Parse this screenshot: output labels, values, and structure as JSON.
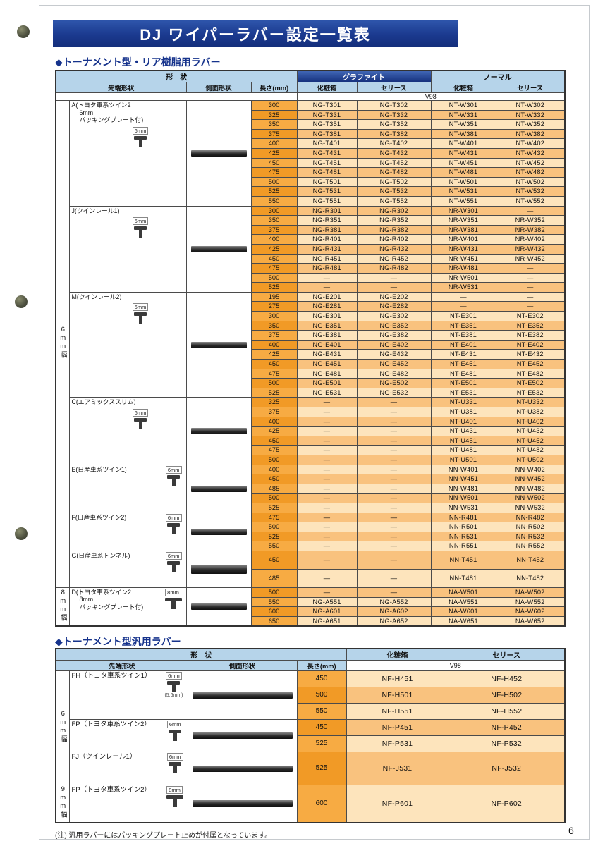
{
  "page": {
    "title": "DJ ワイパーラバー設定一覧表",
    "page_number": "6",
    "footnote": "(注) 汎用ラバーにはパッキングプレート止めが付属となっています。"
  },
  "colors": {
    "banner_blue": "#1b3a8f",
    "header_blue": "#b6d4ea",
    "length_orange": "#f19a26",
    "row_light": "#fde4bc",
    "row_dark": "#f9c27e"
  },
  "section1": {
    "heading": "◆トーナメント型・リア樹脂用ラバー",
    "header": {
      "shape": "形　状",
      "tip_shape": "先端形状",
      "side_shape": "側面形状",
      "length": "長さ(mm)",
      "graphite": "グラファイト",
      "normal": "ノーマル",
      "box": "化粧箱",
      "series": "セリース",
      "v98": "V98"
    },
    "bands": [
      {
        "label": "6mm幅",
        "group_count": 7
      },
      {
        "label": "8mm幅",
        "group_count": 1
      }
    ],
    "groups": [
      {
        "label_lines": [
          "A(トヨタ車系ツイン2",
          "6mm",
          "パッキングプレート付)"
        ],
        "tip_dim": "6mm",
        "rows": [
          {
            "len": "300",
            "c": [
              "NG-T301",
              "NG-T302",
              "NT-W301",
              "NT-W302"
            ]
          },
          {
            "len": "325",
            "c": [
              "NG-T331",
              "NG-T332",
              "NT-W331",
              "NT-W332"
            ]
          },
          {
            "len": "350",
            "c": [
              "NG-T351",
              "NG-T352",
              "NT-W351",
              "NT-W352"
            ]
          },
          {
            "len": "375",
            "c": [
              "NG-T381",
              "NG-T382",
              "NT-W381",
              "NT-W382"
            ]
          },
          {
            "len": "400",
            "c": [
              "NG-T401",
              "NG-T402",
              "NT-W401",
              "NT-W402"
            ]
          },
          {
            "len": "425",
            "c": [
              "NG-T431",
              "NG-T432",
              "NT-W431",
              "NT-W432"
            ]
          },
          {
            "len": "450",
            "c": [
              "NG-T451",
              "NG-T452",
              "NT-W451",
              "NT-W452"
            ]
          },
          {
            "len": "475",
            "c": [
              "NG-T481",
              "NG-T482",
              "NT-W481",
              "NT-W482"
            ]
          },
          {
            "len": "500",
            "c": [
              "NG-T501",
              "NG-T502",
              "NT-W501",
              "NT-W502"
            ]
          },
          {
            "len": "525",
            "c": [
              "NG-T531",
              "NG-T532",
              "NT-W531",
              "NT-W532"
            ]
          },
          {
            "len": "550",
            "c": [
              "NG-T551",
              "NG-T552",
              "NT-W551",
              "NT-W552"
            ]
          }
        ]
      },
      {
        "label_lines": [
          "J(ツインレール1)"
        ],
        "tip_dim": "6mm",
        "rows": [
          {
            "len": "300",
            "c": [
              "NG-R301",
              "NG-R302",
              "NR-W301",
              "—"
            ]
          },
          {
            "len": "350",
            "c": [
              "NG-R351",
              "NG-R352",
              "NR-W351",
              "NR-W352"
            ]
          },
          {
            "len": "375",
            "c": [
              "NG-R381",
              "NG-R382",
              "NR-W381",
              "NR-W382"
            ]
          },
          {
            "len": "400",
            "c": [
              "NG-R401",
              "NG-R402",
              "NR-W401",
              "NR-W402"
            ]
          },
          {
            "len": "425",
            "c": [
              "NG-R431",
              "NG-R432",
              "NR-W431",
              "NR-W432"
            ]
          },
          {
            "len": "450",
            "c": [
              "NG-R451",
              "NG-R452",
              "NR-W451",
              "NR-W452"
            ]
          },
          {
            "len": "475",
            "c": [
              "NG-R481",
              "NG-R482",
              "NR-W481",
              "—"
            ]
          },
          {
            "len": "500",
            "c": [
              "—",
              "—",
              "NR-W501",
              "—"
            ]
          },
          {
            "len": "525",
            "c": [
              "—",
              "—",
              "NR-W531",
              "—"
            ]
          }
        ]
      },
      {
        "label_lines": [
          "M(ツインレール2)"
        ],
        "tip_dim": "6mm",
        "rows": [
          {
            "len": "195",
            "c": [
              "NG-E201",
              "NG-E202",
              "—",
              "—"
            ]
          },
          {
            "len": "275",
            "c": [
              "NG-E281",
              "NG-E282",
              "—",
              "—"
            ]
          },
          {
            "len": "300",
            "c": [
              "NG-E301",
              "NG-E302",
              "NT-E301",
              "NT-E302"
            ]
          },
          {
            "len": "350",
            "c": [
              "NG-E351",
              "NG-E352",
              "NT-E351",
              "NT-E352"
            ]
          },
          {
            "len": "375",
            "c": [
              "NG-E381",
              "NG-E382",
              "NT-E381",
              "NT-E382"
            ]
          },
          {
            "len": "400",
            "c": [
              "NG-E401",
              "NG-E402",
              "NT-E401",
              "NT-E402"
            ]
          },
          {
            "len": "425",
            "c": [
              "NG-E431",
              "NG-E432",
              "NT-E431",
              "NT-E432"
            ]
          },
          {
            "len": "450",
            "c": [
              "NG-E451",
              "NG-E452",
              "NT-E451",
              "NT-E452"
            ]
          },
          {
            "len": "475",
            "c": [
              "NG-E481",
              "NG-E482",
              "NT-E481",
              "NT-E482"
            ]
          },
          {
            "len": "500",
            "c": [
              "NG-E501",
              "NG-E502",
              "NT-E501",
              "NT-E502"
            ]
          },
          {
            "len": "525",
            "c": [
              "NG-E531",
              "NG-E532",
              "NT-E531",
              "NT-E532"
            ]
          }
        ]
      },
      {
        "label_lines": [
          "C(エアミックススリム)"
        ],
        "tip_dim": "6mm",
        "rows": [
          {
            "len": "325",
            "c": [
              "—",
              "—",
              "NT-U331",
              "NT-U332"
            ]
          },
          {
            "len": "375",
            "c": [
              "—",
              "—",
              "NT-U381",
              "NT-U382"
            ]
          },
          {
            "len": "400",
            "c": [
              "—",
              "—",
              "NT-U401",
              "NT-U402"
            ]
          },
          {
            "len": "425",
            "c": [
              "—",
              "—",
              "NT-U431",
              "NT-U432"
            ]
          },
          {
            "len": "450",
            "c": [
              "—",
              "—",
              "NT-U451",
              "NT-U452"
            ]
          },
          {
            "len": "475",
            "c": [
              "—",
              "—",
              "NT-U481",
              "NT-U482"
            ]
          },
          {
            "len": "500",
            "c": [
              "—",
              "—",
              "NT-U501",
              "NT-U502"
            ]
          }
        ]
      },
      {
        "label_lines": [
          "E(日産車系ツイン1)"
        ],
        "tip_dim": "6mm",
        "rows": [
          {
            "len": "400",
            "c": [
              "—",
              "—",
              "NN-W401",
              "NN-W402"
            ]
          },
          {
            "len": "450",
            "c": [
              "—",
              "—",
              "NN-W451",
              "NN-W452"
            ]
          },
          {
            "len": "485",
            "c": [
              "—",
              "—",
              "NN-W481",
              "NN-W482"
            ]
          },
          {
            "len": "500",
            "c": [
              "—",
              "—",
              "NN-W501",
              "NN-W502"
            ]
          },
          {
            "len": "525",
            "c": [
              "—",
              "—",
              "NN-W531",
              "NN-W532"
            ]
          }
        ]
      },
      {
        "label_lines": [
          "F(日産車系ツイン2)"
        ],
        "tip_dim": "6mm",
        "rows": [
          {
            "len": "475",
            "c": [
              "—",
              "—",
              "NN-R481",
              "NN-R482"
            ]
          },
          {
            "len": "500",
            "c": [
              "—",
              "—",
              "NN-R501",
              "NN-R502"
            ]
          },
          {
            "len": "525",
            "c": [
              "—",
              "—",
              "NN-R531",
              "NN-R532"
            ]
          },
          {
            "len": "550",
            "c": [
              "—",
              "—",
              "NN-R551",
              "NN-R552"
            ]
          }
        ]
      },
      {
        "label_lines": [
          "G(日産車系トンネル)"
        ],
        "tip_dim": "6mm",
        "rows": [
          {
            "len": "450",
            "c": [
              "—",
              "—",
              "NN-T451",
              "NN-T452"
            ]
          },
          {
            "len": "485",
            "c": [
              "—",
              "—",
              "NN-T481",
              "NN-T482"
            ]
          }
        ]
      },
      {
        "label_lines": [
          "D(トヨタ車系ツイン2",
          "8mm",
          "パッキングプレート付)"
        ],
        "tip_dim": "8mm",
        "rows": [
          {
            "len": "500",
            "c": [
              "—",
              "—",
              "NA-W501",
              "NA-W502"
            ]
          },
          {
            "len": "550",
            "c": [
              "NG-A551",
              "NG-A552",
              "NA-W551",
              "NA-W552"
            ]
          },
          {
            "len": "600",
            "c": [
              "NG-A601",
              "NG-A602",
              "NA-W601",
              "NA-W602"
            ]
          },
          {
            "len": "650",
            "c": [
              "NG-A651",
              "NG-A652",
              "NA-W651",
              "NA-W652"
            ]
          }
        ]
      }
    ]
  },
  "section2": {
    "heading": "◆トーナメント型汎用ラバー",
    "header": {
      "shape": "形　状",
      "tip_shape": "先端形状",
      "side_shape": "側面形状",
      "length": "長さ(mm)",
      "box": "化粧箱",
      "series": "セリース",
      "v98": "V98"
    },
    "bands": [
      {
        "label": "6mm幅",
        "group_count": 3
      },
      {
        "label": "9mm幅",
        "group_count": 1
      }
    ],
    "groups": [
      {
        "label_lines": [
          "FH（トヨタ車系ツイン1）"
        ],
        "tip_dim": "6mm",
        "tip_sub": "(5.6mm)",
        "rows": [
          {
            "len": "450",
            "c": [
              "NF-H451",
              "NF-H452"
            ]
          },
          {
            "len": "500",
            "c": [
              "NF-H501",
              "NF-H502"
            ]
          },
          {
            "len": "550",
            "c": [
              "NF-H551",
              "NF-H552"
            ]
          }
        ]
      },
      {
        "label_lines": [
          "FP（トヨタ車系ツイン2）"
        ],
        "tip_dim": "6mm",
        "rows": [
          {
            "len": "450",
            "c": [
              "NF-P451",
              "NF-P452"
            ]
          },
          {
            "len": "525",
            "c": [
              "NF-P531",
              "NF-P532"
            ]
          }
        ]
      },
      {
        "label_lines": [
          "FJ（ツインレール1）"
        ],
        "tip_dim": "6mm",
        "rows": [
          {
            "len": "525",
            "c": [
              "NF-J531",
              "NF-J532"
            ]
          }
        ]
      },
      {
        "label_lines": [
          "FP（トヨタ車系ツイン2）"
        ],
        "tip_dim": "8mm",
        "rows": [
          {
            "len": "600",
            "c": [
              "NF-P601",
              "NF-P602"
            ]
          }
        ]
      }
    ]
  }
}
